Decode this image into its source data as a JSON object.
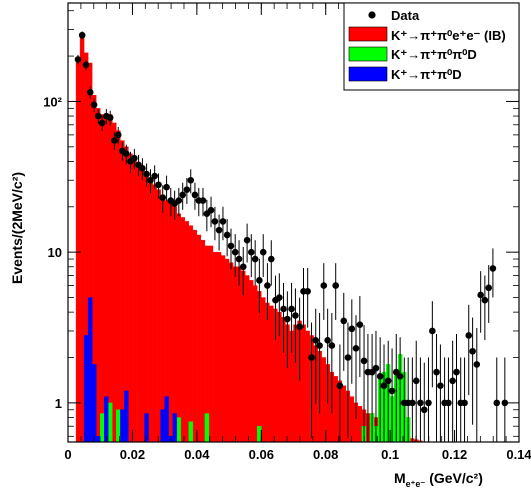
{
  "chart_data": {
    "type": "histogram",
    "x_axis": {
      "title_main": "M",
      "title_sub": "e⁺e⁻",
      "title_units": "(GeV/c²)",
      "range": [
        0,
        0.14
      ],
      "scale": "linear",
      "tick_labels": [
        "0",
        "0.02",
        "0.04",
        "0.06",
        "0.08",
        "0.1",
        "0.12",
        "0.14"
      ],
      "tick_values": [
        0,
        0.02,
        0.04,
        0.06,
        0.08,
        0.1,
        0.12,
        0.14
      ]
    },
    "y_axis": {
      "title": "Events/(2MeV/c²)",
      "range": [
        0.55,
        450
      ],
      "scale": "log",
      "tick_labels": [
        "1",
        "10",
        "10²"
      ],
      "tick_values": [
        1,
        10,
        100
      ]
    },
    "bin_width": 0.00125,
    "bin_start": 0.0025,
    "legend": {
      "placement": "top-right",
      "entries": [
        {
          "key": "data",
          "label": "Data",
          "marker": "dot"
        },
        {
          "key": "ib",
          "label": "K⁺→π⁺π⁰e⁺e⁻ (IB)",
          "color": "#ff0000"
        },
        {
          "key": "pi0pi0",
          "label": "K⁺→π⁺π⁰π⁰D",
          "color": "#00ff00"
        },
        {
          "key": "pi0",
          "label": "K⁺→π⁺π⁰D",
          "color": "#0000ff"
        }
      ]
    },
    "series": [
      {
        "key": "ib",
        "color": "#ff0000",
        "values": [
          190,
          280,
          210,
          180,
          110,
          90,
          82,
          78,
          82,
          72,
          64,
          55,
          50,
          45,
          42,
          38,
          35,
          32,
          30,
          28,
          26,
          24,
          22,
          22,
          20,
          18,
          17,
          16,
          15,
          14,
          13,
          12,
          11,
          11,
          10,
          10,
          9.5,
          9,
          8.5,
          8,
          8,
          7.5,
          7,
          6.5,
          6,
          5.5,
          5,
          4.6,
          4.4,
          4.2,
          4,
          3.7,
          3.3,
          3,
          3.3,
          3.5,
          3.3,
          3,
          2.8,
          2.4,
          2.2,
          2,
          1.8,
          1.6,
          1.5,
          1.4,
          1.3,
          1.2,
          1.1,
          1.0,
          0.95,
          0.9,
          0.85,
          0.85,
          0.8,
          0.8,
          0.75,
          0.7,
          0.7,
          0.65,
          0.6,
          0.6,
          0.6,
          0.58,
          0.57,
          0.56,
          0.55,
          0.55
        ]
      },
      {
        "key": "pi0pi0",
        "color": "#00ff00",
        "values": [
          0,
          0,
          0,
          0,
          0,
          0,
          0.85,
          0.55,
          1.0,
          0,
          0.9,
          0.7,
          0,
          0,
          0,
          0,
          0,
          0,
          0,
          0,
          0,
          0,
          0,
          0,
          0,
          0.8,
          0,
          0,
          0.75,
          0,
          0,
          0,
          0.85,
          0,
          0,
          0,
          0,
          0,
          0,
          0,
          0,
          0,
          0,
          0,
          0,
          0.7,
          0,
          0,
          0,
          0,
          0,
          0,
          0,
          0,
          0,
          0,
          0,
          0,
          0,
          0,
          0,
          0,
          0,
          0,
          0,
          0,
          0,
          0,
          0,
          0,
          0,
          0.7,
          0,
          0.85,
          0.7,
          1.5,
          1.6,
          1.8,
          1.1,
          1.6,
          2.1,
          1.6,
          0.8,
          0,
          0,
          0,
          0,
          0
        ]
      },
      {
        "key": "pi0",
        "color": "#0000ff",
        "values": [
          0,
          0,
          2.8,
          5.0,
          1.8,
          0.6,
          0,
          1.1,
          0,
          0,
          0,
          0.9,
          1.2,
          0.55,
          0,
          0,
          0,
          0.85,
          0,
          0,
          0.55,
          0.9,
          1.1,
          0.6,
          0.85,
          0,
          0,
          0,
          0,
          0,
          0,
          0,
          0,
          0,
          0,
          0,
          0,
          0,
          0,
          0,
          0,
          0,
          0,
          0,
          0,
          0,
          0,
          0,
          0,
          0,
          0,
          0,
          0,
          0,
          0,
          0,
          0,
          0,
          0,
          0,
          0,
          0,
          0,
          0,
          0,
          0,
          0,
          0,
          0,
          0,
          0,
          0,
          0,
          0,
          0,
          0,
          0,
          0,
          0,
          0,
          0,
          0,
          0,
          0,
          0,
          0,
          0,
          0
        ]
      }
    ],
    "data_points": [
      {
        "x": 0.0031,
        "y": 190
      },
      {
        "x": 0.0044,
        "y": 275
      },
      {
        "x": 0.0056,
        "y": 175
      },
      {
        "x": 0.0069,
        "y": 115
      },
      {
        "x": 0.0081,
        "y": 95
      },
      {
        "x": 0.0094,
        "y": 80
      },
      {
        "x": 0.0106,
        "y": 72
      },
      {
        "x": 0.0119,
        "y": 80
      },
      {
        "x": 0.0131,
        "y": 78
      },
      {
        "x": 0.0144,
        "y": 55
      },
      {
        "x": 0.0156,
        "y": 60
      },
      {
        "x": 0.0169,
        "y": 47
      },
      {
        "x": 0.0181,
        "y": 45
      },
      {
        "x": 0.0194,
        "y": 40
      },
      {
        "x": 0.0206,
        "y": 42
      },
      {
        "x": 0.0219,
        "y": 38
      },
      {
        "x": 0.0231,
        "y": 36
      },
      {
        "x": 0.0244,
        "y": 33
      },
      {
        "x": 0.0256,
        "y": 30
      },
      {
        "x": 0.0269,
        "y": 32
      },
      {
        "x": 0.0281,
        "y": 28
      },
      {
        "x": 0.0294,
        "y": 23
      },
      {
        "x": 0.0306,
        "y": 27
      },
      {
        "x": 0.0319,
        "y": 22
      },
      {
        "x": 0.0331,
        "y": 21
      },
      {
        "x": 0.0344,
        "y": 22
      },
      {
        "x": 0.0356,
        "y": 24
      },
      {
        "x": 0.0369,
        "y": 26
      },
      {
        "x": 0.0381,
        "y": 30
      },
      {
        "x": 0.0394,
        "y": 24
      },
      {
        "x": 0.0406,
        "y": 22
      },
      {
        "x": 0.0419,
        "y": 22
      },
      {
        "x": 0.0431,
        "y": 18
      },
      {
        "x": 0.0444,
        "y": 19
      },
      {
        "x": 0.0456,
        "y": 16
      },
      {
        "x": 0.0469,
        "y": 14
      },
      {
        "x": 0.0481,
        "y": 16
      },
      {
        "x": 0.0494,
        "y": 13
      },
      {
        "x": 0.0506,
        "y": 11
      },
      {
        "x": 0.0519,
        "y": 10
      },
      {
        "x": 0.0531,
        "y": 9
      },
      {
        "x": 0.0544,
        "y": 8
      },
      {
        "x": 0.0556,
        "y": 12
      },
      {
        "x": 0.0569,
        "y": 10
      },
      {
        "x": 0.0581,
        "y": 9
      },
      {
        "x": 0.0594,
        "y": 6.5
      },
      {
        "x": 0.0606,
        "y": 10
      },
      {
        "x": 0.0619,
        "y": 6
      },
      {
        "x": 0.0631,
        "y": 9
      },
      {
        "x": 0.0644,
        "y": 4.8
      },
      {
        "x": 0.0656,
        "y": 5
      },
      {
        "x": 0.0669,
        "y": 4.2
      },
      {
        "x": 0.0681,
        "y": 3.6
      },
      {
        "x": 0.0694,
        "y": 4.2
      },
      {
        "x": 0.0706,
        "y": 3.8
      },
      {
        "x": 0.0719,
        "y": 3.2
      },
      {
        "x": 0.0731,
        "y": 5.5
      },
      {
        "x": 0.0744,
        "y": 5.5
      },
      {
        "x": 0.0756,
        "y": 2
      },
      {
        "x": 0.0769,
        "y": 2.6
      },
      {
        "x": 0.0781,
        "y": 2.4
      },
      {
        "x": 0.0794,
        "y": 6
      },
      {
        "x": 0.0806,
        "y": 2.6
      },
      {
        "x": 0.0819,
        "y": 2.4
      },
      {
        "x": 0.0831,
        "y": 6
      },
      {
        "x": 0.0844,
        "y": 1.3
      },
      {
        "x": 0.0856,
        "y": 3.5
      },
      {
        "x": 0.0869,
        "y": 2
      },
      {
        "x": 0.0881,
        "y": 3.1
      },
      {
        "x": 0.0894,
        "y": 2.3
      },
      {
        "x": 0.0906,
        "y": 3.3
      },
      {
        "x": 0.0919,
        "y": 1.9
      },
      {
        "x": 0.0931,
        "y": 1.6
      },
      {
        "x": 0.0944,
        "y": 1.6
      },
      {
        "x": 0.0956,
        "y": 1.7
      },
      {
        "x": 0.0969,
        "y": 1.5
      },
      {
        "x": 0.0981,
        "y": 1.3
      },
      {
        "x": 0.0994,
        "y": 1.4
      },
      {
        "x": 0.1006,
        "y": 1.2
      },
      {
        "x": 0.1019,
        "y": 1.6
      },
      {
        "x": 0.1031,
        "y": 1.5
      },
      {
        "x": 0.1044,
        "y": 1
      },
      {
        "x": 0.1056,
        "y": 1
      },
      {
        "x": 0.1069,
        "y": 1
      },
      {
        "x": 0.1081,
        "y": 1.4
      },
      {
        "x": 0.1094,
        "y": 1
      },
      {
        "x": 0.1106,
        "y": 0.9
      },
      {
        "x": 0.1119,
        "y": 1
      },
      {
        "x": 0.1131,
        "y": 3
      },
      {
        "x": 0.1144,
        "y": 1.6
      },
      {
        "x": 0.1156,
        "y": 1.3
      },
      {
        "x": 0.1169,
        "y": 1
      },
      {
        "x": 0.1181,
        "y": 1
      },
      {
        "x": 0.1194,
        "y": 1.4
      },
      {
        "x": 0.1206,
        "y": 1.6
      },
      {
        "x": 0.1219,
        "y": 1
      },
      {
        "x": 0.1231,
        "y": 1
      },
      {
        "x": 0.1244,
        "y": 2.8
      },
      {
        "x": 0.1256,
        "y": 2.2
      },
      {
        "x": 0.1269,
        "y": 1.8
      },
      {
        "x": 0.1281,
        "y": 5.2
      },
      {
        "x": 0.1294,
        "y": 4.8
      },
      {
        "x": 0.1306,
        "y": 5.8
      },
      {
        "x": 0.1319,
        "y": 7.8
      },
      {
        "x": 0.1331,
        "y": 1
      },
      {
        "x": 0.1356,
        "y": 1
      }
    ]
  }
}
